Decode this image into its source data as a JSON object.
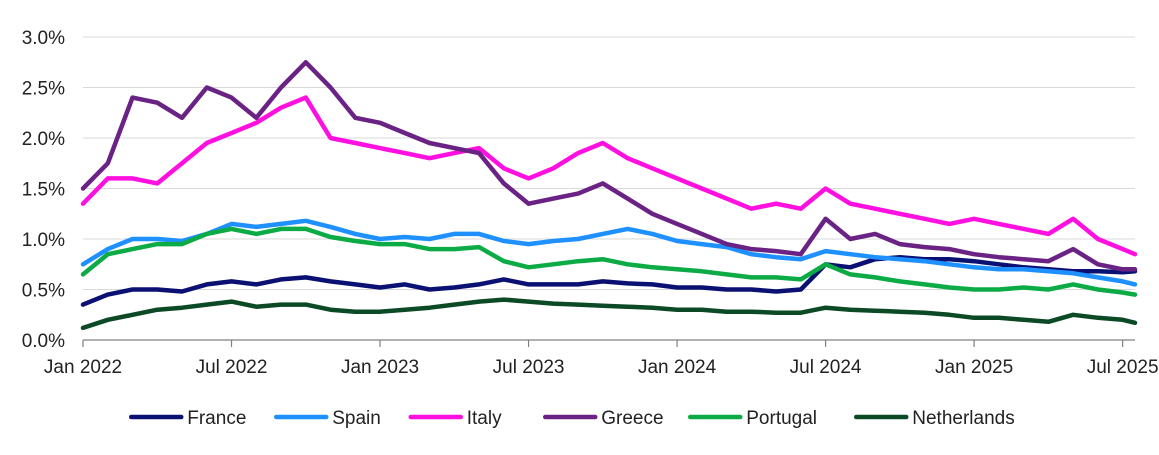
{
  "chart_data": {
    "type": "line",
    "title": "",
    "xlabel": "",
    "ylabel": "",
    "ylim": [
      0,
      3.0
    ],
    "y_ticks": [
      0.0,
      0.5,
      1.0,
      1.5,
      2.0,
      2.5,
      3.0
    ],
    "y_tick_labels": [
      "0.0%",
      "0.5%",
      "1.0%",
      "1.5%",
      "2.0%",
      "2.5%",
      "3.0%"
    ],
    "x_range": [
      "Jan 2022",
      "Jul 2025"
    ],
    "x_tick_labels": [
      "Jan 2022",
      "Jul 2022",
      "Jan 2023",
      "Jul 2023",
      "Jan 2024",
      "Jul 2024",
      "Jan 2025",
      "Jul 2025"
    ],
    "x_ticks_months": [
      0,
      6,
      12,
      18,
      24,
      30,
      36,
      42
    ],
    "x_max_months": 42.5,
    "grid": "horizontal",
    "legend_position": "bottom",
    "series": [
      {
        "name": "France",
        "color": "#0a1172",
        "x": [
          0,
          1,
          2,
          3,
          4,
          5,
          6,
          7,
          8,
          9,
          10,
          11,
          12,
          13,
          14,
          15,
          16,
          17,
          18,
          19,
          20,
          21,
          22,
          23,
          24,
          25,
          26,
          27,
          28,
          29,
          30,
          31,
          32,
          33,
          34,
          35,
          36,
          37,
          38,
          39,
          40,
          41,
          42,
          42.5
        ],
        "values": [
          0.35,
          0.45,
          0.5,
          0.5,
          0.48,
          0.55,
          0.58,
          0.55,
          0.6,
          0.62,
          0.58,
          0.55,
          0.52,
          0.55,
          0.5,
          0.52,
          0.55,
          0.6,
          0.55,
          0.55,
          0.55,
          0.58,
          0.56,
          0.55,
          0.52,
          0.52,
          0.5,
          0.5,
          0.48,
          0.5,
          0.75,
          0.72,
          0.8,
          0.82,
          0.8,
          0.8,
          0.78,
          0.75,
          0.72,
          0.7,
          0.68,
          0.68,
          0.67,
          0.68
        ]
      },
      {
        "name": "Spain",
        "color": "#1e90ff",
        "x": [
          0,
          1,
          2,
          3,
          4,
          5,
          6,
          7,
          8,
          9,
          10,
          11,
          12,
          13,
          14,
          15,
          16,
          17,
          18,
          19,
          20,
          21,
          22,
          23,
          24,
          25,
          26,
          27,
          28,
          29,
          30,
          31,
          32,
          33,
          34,
          35,
          36,
          37,
          38,
          39,
          40,
          41,
          42,
          42.5
        ],
        "values": [
          0.75,
          0.9,
          1.0,
          1.0,
          0.98,
          1.05,
          1.15,
          1.12,
          1.15,
          1.18,
          1.12,
          1.05,
          1.0,
          1.02,
          1.0,
          1.05,
          1.05,
          0.98,
          0.95,
          0.98,
          1.0,
          1.05,
          1.1,
          1.05,
          0.98,
          0.95,
          0.92,
          0.85,
          0.82,
          0.8,
          0.88,
          0.85,
          0.82,
          0.8,
          0.78,
          0.75,
          0.72,
          0.7,
          0.7,
          0.68,
          0.66,
          0.62,
          0.58,
          0.55
        ]
      },
      {
        "name": "Italy",
        "color": "#ff10e0",
        "x": [
          0,
          1,
          2,
          3,
          4,
          5,
          6,
          7,
          8,
          9,
          10,
          11,
          12,
          13,
          14,
          15,
          16,
          17,
          18,
          19,
          20,
          21,
          22,
          23,
          24,
          25,
          26,
          27,
          28,
          29,
          30,
          31,
          32,
          33,
          34,
          35,
          36,
          37,
          38,
          39,
          40,
          41,
          42,
          42.5
        ],
        "values": [
          1.35,
          1.6,
          1.6,
          1.55,
          1.75,
          1.95,
          2.05,
          2.15,
          2.3,
          2.4,
          2.0,
          1.95,
          1.9,
          1.85,
          1.8,
          1.85,
          1.9,
          1.7,
          1.6,
          1.7,
          1.85,
          1.95,
          1.8,
          1.7,
          1.6,
          1.5,
          1.4,
          1.3,
          1.35,
          1.3,
          1.5,
          1.35,
          1.3,
          1.25,
          1.2,
          1.15,
          1.2,
          1.15,
          1.1,
          1.05,
          1.2,
          1.0,
          0.9,
          0.85
        ]
      },
      {
        "name": "Greece",
        "color": "#6a2384",
        "x": [
          0,
          1,
          2,
          3,
          4,
          5,
          6,
          7,
          8,
          9,
          10,
          11,
          12,
          13,
          14,
          15,
          16,
          17,
          18,
          19,
          20,
          21,
          22,
          23,
          24,
          25,
          26,
          27,
          28,
          29,
          30,
          31,
          32,
          33,
          34,
          35,
          36,
          37,
          38,
          39,
          40,
          41,
          42,
          42.5
        ],
        "values": [
          1.5,
          1.75,
          2.4,
          2.35,
          2.2,
          2.5,
          2.4,
          2.2,
          2.5,
          2.75,
          2.5,
          2.2,
          2.15,
          2.05,
          1.95,
          1.9,
          1.85,
          1.55,
          1.35,
          1.4,
          1.45,
          1.55,
          1.4,
          1.25,
          1.15,
          1.05,
          0.95,
          0.9,
          0.88,
          0.85,
          1.2,
          1.0,
          1.05,
          0.95,
          0.92,
          0.9,
          0.85,
          0.82,
          0.8,
          0.78,
          0.9,
          0.75,
          0.7,
          0.7
        ]
      },
      {
        "name": "Portugal",
        "color": "#0dab45",
        "x": [
          0,
          1,
          2,
          3,
          4,
          5,
          6,
          7,
          8,
          9,
          10,
          11,
          12,
          13,
          14,
          15,
          16,
          17,
          18,
          19,
          20,
          21,
          22,
          23,
          24,
          25,
          26,
          27,
          28,
          29,
          30,
          31,
          32,
          33,
          34,
          35,
          36,
          37,
          38,
          39,
          40,
          41,
          42,
          42.5
        ],
        "values": [
          0.65,
          0.85,
          0.9,
          0.95,
          0.95,
          1.05,
          1.1,
          1.05,
          1.1,
          1.1,
          1.02,
          0.98,
          0.95,
          0.95,
          0.9,
          0.9,
          0.92,
          0.78,
          0.72,
          0.75,
          0.78,
          0.8,
          0.75,
          0.72,
          0.7,
          0.68,
          0.65,
          0.62,
          0.62,
          0.6,
          0.75,
          0.65,
          0.62,
          0.58,
          0.55,
          0.52,
          0.5,
          0.5,
          0.52,
          0.5,
          0.55,
          0.5,
          0.47,
          0.45
        ]
      },
      {
        "name": "Netherlands",
        "color": "#0c4a26",
        "x": [
          0,
          1,
          2,
          3,
          4,
          5,
          6,
          7,
          8,
          9,
          10,
          11,
          12,
          13,
          14,
          15,
          16,
          17,
          18,
          19,
          20,
          21,
          22,
          23,
          24,
          25,
          26,
          27,
          28,
          29,
          30,
          31,
          32,
          33,
          34,
          35,
          36,
          37,
          38,
          39,
          40,
          41,
          42,
          42.5
        ],
        "values": [
          0.12,
          0.2,
          0.25,
          0.3,
          0.32,
          0.35,
          0.38,
          0.33,
          0.35,
          0.35,
          0.3,
          0.28,
          0.28,
          0.3,
          0.32,
          0.35,
          0.38,
          0.4,
          0.38,
          0.36,
          0.35,
          0.34,
          0.33,
          0.32,
          0.3,
          0.3,
          0.28,
          0.28,
          0.27,
          0.27,
          0.32,
          0.3,
          0.29,
          0.28,
          0.27,
          0.25,
          0.22,
          0.22,
          0.2,
          0.18,
          0.25,
          0.22,
          0.2,
          0.17
        ]
      }
    ]
  }
}
